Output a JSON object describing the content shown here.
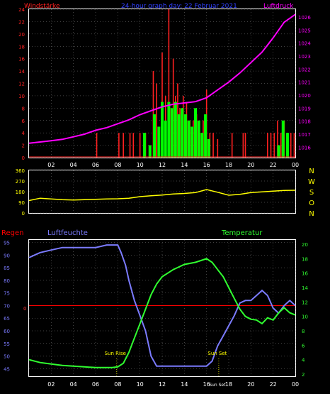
{
  "header": {
    "left_label": "Windstärke",
    "center_label": "24-hour graph day: 22 Februar 2021",
    "right_label": "Luftdruck"
  },
  "colors": {
    "background": "#000000",
    "panel_border": "#ffffff",
    "grid": "#808080",
    "wind": "#ff2020",
    "gust": "#00ff00",
    "pressure": "#ff00ff",
    "pressure_axis": "#ff00ff",
    "wind_axis": "#ff2020",
    "direction": "#ffff00",
    "direction_axis": "#ffff00",
    "humidity": "#7b7bff",
    "temperature": "#30ff30",
    "rain": "#ff0000",
    "markers": "#ffff00",
    "time_axis": "#ffffff"
  },
  "chart_data": [
    {
      "id": "wind_pressure",
      "type": "bar",
      "title": "",
      "xlabel": "",
      "x_ticks": [
        "02",
        "04",
        "06",
        "08",
        "10",
        "12",
        "14",
        "16",
        "18",
        "20",
        "22",
        "00"
      ],
      "x_range_hours": [
        0,
        24
      ],
      "left_axis": {
        "label": "Windstärke",
        "ticks": [
          0,
          2,
          4,
          6,
          8,
          10,
          12,
          14,
          16,
          18,
          20,
          22,
          24
        ],
        "ylim": [
          0,
          24
        ]
      },
      "right_axis": {
        "label": "Luftdruck",
        "ticks": [
          1016,
          1017,
          1018,
          1019,
          1020,
          1021,
          1022,
          1023,
          1024,
          1025,
          1026
        ],
        "ylim": [
          1015.2,
          1026.6
        ]
      },
      "series": [
        {
          "name": "Windstärke",
          "kind": "bars",
          "x": [
            11.2,
            11.5,
            12.0,
            12.3,
            12.6,
            12.8,
            13.0,
            13.2,
            13.4,
            13.6,
            13.9,
            14.2,
            14.5,
            14.8,
            15.1,
            15.4,
            15.7,
            16.0,
            16.3,
            16.6,
            17.0,
            18.3,
            19.3,
            19.5,
            21.5,
            21.8,
            22.1,
            22.4,
            22.7,
            23.0,
            23.3,
            23.6,
            23.9,
            9.1,
            9.4,
            10.0,
            10.5,
            8.1,
            8.5,
            6.1
          ],
          "y": [
            14.0,
            12.0,
            17.0,
            10.0,
            24.0,
            8.0,
            16.0,
            10.0,
            12.0,
            8.0,
            10.0,
            9.0,
            6.0,
            6.0,
            7.0,
            4.0,
            6.0,
            11.0,
            4.0,
            4.0,
            3.0,
            4.0,
            4.0,
            4.0,
            4.0,
            4.0,
            4.0,
            6.0,
            4.0,
            6.0,
            4.0,
            4.0,
            4.0,
            4.0,
            4.0,
            4.0,
            4.0,
            4.0,
            4.0,
            4.0
          ]
        },
        {
          "name": "Böen",
          "kind": "bars",
          "x": [
            10.4,
            10.9,
            11.3,
            11.7,
            12.0,
            12.3,
            12.6,
            12.9,
            13.2,
            13.5,
            13.8,
            14.1,
            14.4,
            14.7,
            15.0,
            15.3,
            15.6,
            15.9,
            16.2,
            22.5,
            22.9,
            23.3
          ],
          "y": [
            4.0,
            2.0,
            7.0,
            5.0,
            9.0,
            6.0,
            9.0,
            8.0,
            9.0,
            7.0,
            8.0,
            7.0,
            6.0,
            5.0,
            8.0,
            6.0,
            4.0,
            7.0,
            3.0,
            2.0,
            6.0,
            4.0
          ]
        },
        {
          "name": "Luftdruck",
          "kind": "line",
          "x": [
            0,
            1,
            2,
            3,
            4,
            5,
            6,
            7,
            8,
            9,
            10,
            11,
            12,
            13,
            14,
            15,
            16,
            17,
            18,
            19,
            20,
            21,
            22,
            23,
            24
          ],
          "y": [
            1016.3,
            1016.4,
            1016.5,
            1016.6,
            1016.8,
            1017.0,
            1017.3,
            1017.5,
            1017.8,
            1018.1,
            1018.5,
            1018.8,
            1019.1,
            1019.3,
            1019.4,
            1019.5,
            1019.8,
            1020.4,
            1021.0,
            1021.7,
            1022.5,
            1023.3,
            1024.4,
            1025.6,
            1026.2
          ]
        }
      ]
    },
    {
      "id": "wind_direction",
      "type": "line",
      "xlabel": "",
      "y_ticks": [
        0,
        90,
        180,
        270,
        360
      ],
      "ylim": [
        0,
        360
      ],
      "compass_labels": [
        "N",
        "W",
        "S",
        "O",
        "N"
      ],
      "series": [
        {
          "name": "Windrichtung",
          "x": [
            0,
            1,
            2,
            3,
            4,
            5,
            6,
            7,
            8,
            9,
            10,
            11,
            12,
            13,
            14,
            15,
            16,
            17,
            18,
            19,
            20,
            21,
            22,
            23,
            24
          ],
          "y": [
            105,
            125,
            118,
            112,
            110,
            112,
            116,
            118,
            120,
            125,
            138,
            145,
            152,
            160,
            165,
            172,
            198,
            175,
            150,
            158,
            172,
            178,
            185,
            190,
            192
          ]
        }
      ]
    },
    {
      "id": "humidity_temperature",
      "type": "line",
      "title": "",
      "x_ticks": [
        "02",
        "04",
        "06",
        "08",
        "10",
        "12",
        "14",
        "16",
        "18",
        "20",
        "22",
        "00"
      ],
      "x_range_hours": [
        0,
        24
      ],
      "left_axis": {
        "label": "Luftfeuchte",
        "ticks": [
          45,
          50,
          55,
          60,
          65,
          70,
          75,
          80,
          85,
          90,
          95
        ],
        "ylim": [
          42,
          96
        ]
      },
      "right_axis": {
        "label": "Temperatur",
        "ticks": [
          2,
          4,
          6,
          8,
          10,
          12,
          14,
          16,
          18,
          20
        ],
        "ylim": [
          1.7,
          20.6
        ]
      },
      "rain_label": "Regen",
      "rain_marker": "0",
      "rain_value": 0,
      "annotations": {
        "sun_rise": "Sun Rise",
        "sun_set": "Sun Set",
        "sun_set_axis": "Sun Set"
      },
      "series": [
        {
          "name": "Luftfeuchte",
          "x": [
            0,
            0.5,
            1,
            2,
            3,
            4,
            5,
            6,
            7,
            7.5,
            8,
            8.3,
            8.7,
            9,
            9.5,
            10,
            10.5,
            11,
            11.5,
            12,
            13,
            14,
            15,
            16,
            16.5,
            17,
            17.5,
            18,
            18.5,
            19,
            19.5,
            20,
            20.5,
            21,
            21.5,
            22,
            22.5,
            23,
            23.5,
            24
          ],
          "y": [
            89.0,
            90.0,
            91.0,
            92.0,
            93.0,
            93.0,
            93.0,
            93.0,
            94.0,
            94.0,
            94.0,
            91.0,
            86.0,
            80.0,
            72.0,
            66.0,
            60.0,
            50.0,
            46.0,
            46.0,
            46.0,
            46.0,
            46.0,
            46.0,
            48.0,
            54.0,
            58.0,
            62.0,
            66.0,
            71.0,
            72.0,
            72.0,
            74.0,
            76.0,
            74.0,
            69.0,
            67.0,
            70.0,
            72.0,
            70.0
          ]
        },
        {
          "name": "Temperatur",
          "x": [
            0,
            0.5,
            1,
            2,
            3,
            4,
            5,
            6,
            7,
            7.5,
            8,
            8.5,
            9,
            9.5,
            10,
            10.5,
            11,
            11.5,
            12,
            13,
            14,
            15,
            16,
            16.5,
            17,
            17.5,
            18,
            18.5,
            19,
            19.5,
            20,
            20.5,
            21,
            21.5,
            22,
            22.5,
            23,
            23.5,
            24
          ],
          "y": [
            4.0,
            3.8,
            3.6,
            3.4,
            3.2,
            3.1,
            3.0,
            2.9,
            2.9,
            2.9,
            3.0,
            3.5,
            5.0,
            7.0,
            9.0,
            11.0,
            13.0,
            14.5,
            15.5,
            16.5,
            17.2,
            17.5,
            18.0,
            17.5,
            16.5,
            15.5,
            14.0,
            12.5,
            11.0,
            10.0,
            9.6,
            9.5,
            9.0,
            9.8,
            9.5,
            10.5,
            11.2,
            10.5,
            10.2
          ]
        }
      ]
    }
  ]
}
